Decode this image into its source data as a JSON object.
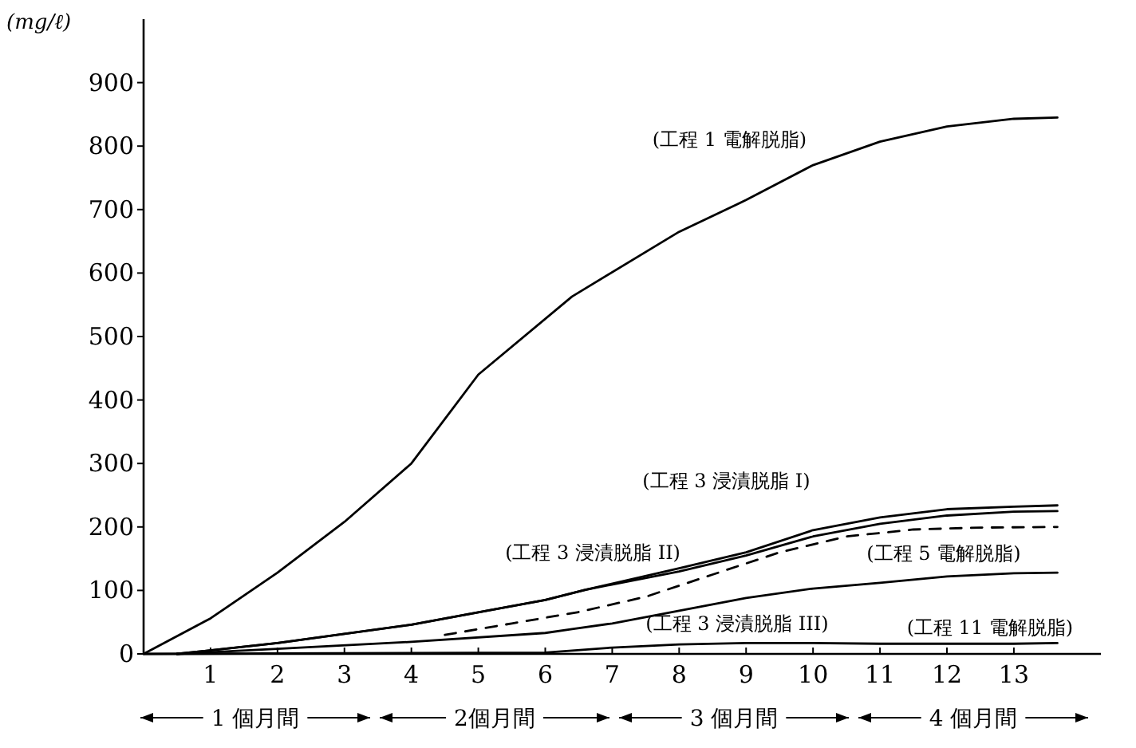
{
  "chart_data": {
    "type": "line",
    "ylabel": "(mg/ℓ)",
    "xlim": [
      0,
      14.3
    ],
    "xticks": [
      1,
      2,
      3,
      4,
      5,
      6,
      7,
      8,
      9,
      10,
      11,
      12,
      13
    ],
    "ylim": [
      0,
      1000
    ],
    "yticks": [
      0,
      100,
      200,
      300,
      400,
      500,
      600,
      700,
      800,
      900
    ],
    "series": [
      {
        "name": "(工程 1 電解脱脂)",
        "color": "#000000",
        "x": [
          0,
          1,
          2,
          3,
          4,
          5,
          6.4,
          8,
          9,
          10,
          11,
          12,
          13,
          13.65
        ],
        "values": [
          0,
          56,
          128,
          208,
          300,
          440,
          563,
          665,
          715,
          770,
          807,
          831,
          843,
          845
        ]
      },
      {
        "name": "(工程 3 浸漬脱脂 I)",
        "color": "#000000",
        "x": [
          0.5,
          2,
          4,
          6,
          6.6,
          8,
          9,
          10,
          11,
          12,
          13,
          13.65
        ],
        "values": [
          0,
          17,
          46,
          85,
          101,
          135,
          160,
          195,
          215,
          228,
          232,
          234
        ]
      },
      {
        "name": "(工程 3 浸漬脱脂 II)",
        "color": "#000000",
        "x": [
          0.5,
          2,
          4,
          6,
          6.6,
          8,
          9,
          10,
          11,
          12,
          13,
          13.65
        ],
        "values": [
          0,
          17,
          46,
          85,
          101,
          130,
          155,
          185,
          205,
          218,
          224,
          225
        ]
      },
      {
        "name": "(工程 5 電解脱脂)",
        "color": "#000000",
        "line_style": "dashed",
        "x": [
          4.5,
          5.5,
          6.5,
          7.5,
          8.5,
          9.5,
          10.5,
          11.5,
          12.5,
          13.65
        ],
        "values": [
          30,
          48,
          66,
          90,
          125,
          160,
          185,
          196,
          199,
          200
        ]
      },
      {
        "name": "(工程 3 浸漬脱脂 III)",
        "color": "#000000",
        "x": [
          0.5,
          2,
          4,
          6,
          6.4,
          7,
          8,
          9,
          10,
          11,
          12,
          13,
          13.65
        ],
        "values": [
          0,
          8,
          19,
          33,
          39,
          48,
          68,
          88,
          103,
          112,
          122,
          127,
          128
        ]
      },
      {
        "name": "(工程 11 電解脱脂)",
        "color": "#000000",
        "x": [
          0,
          6,
          7,
          8,
          9,
          10,
          11,
          12,
          13,
          13.65
        ],
        "values": [
          0,
          2,
          10,
          15,
          17,
          17,
          16,
          16,
          16,
          17
        ]
      }
    ],
    "annotations": [
      "1 個月間",
      "2個月間",
      "3 個月間",
      "4 個月間"
    ]
  }
}
